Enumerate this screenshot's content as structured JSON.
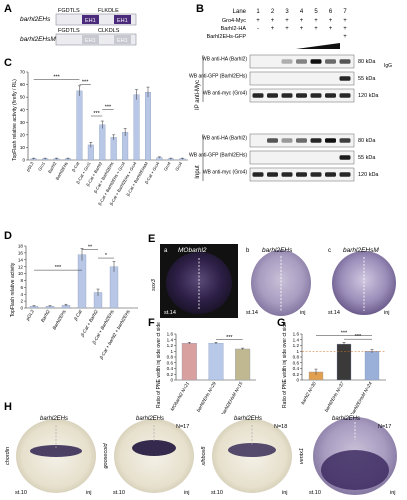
{
  "panels": {
    "A": {
      "letter": "A",
      "constructs": [
        {
          "name": "barhl2EHs",
          "segments": [
            "FGDTLS",
            "FLKDLE",
            "EH1",
            "EH1"
          ]
        },
        {
          "name": "barhl2EHsM",
          "segments": [
            "FGDTLS",
            "CLKDLS",
            "EH1",
            "EH1"
          ]
        }
      ]
    },
    "B": {
      "letter": "B",
      "lane_label": "Lane",
      "lanes": [
        "1",
        "2",
        "3",
        "4",
        "5",
        "6",
        "7"
      ],
      "conditions": [
        {
          "label": "Gro4-Myc",
          "marks": [
            "+",
            "+",
            "+",
            "+",
            "+",
            "+",
            "+"
          ]
        },
        {
          "label": "Barhl2-HA",
          "marks": [
            "-",
            "+",
            "+",
            "+",
            "+",
            "+",
            "+"
          ]
        },
        {
          "label": "Barhl2EHs-GFP",
          "marks": [
            "",
            "",
            "",
            "",
            "",
            "",
            "+"
          ]
        }
      ],
      "ip_label": "IP anti-Myc",
      "input_label": "Input",
      "blots": [
        {
          "label": "WB anti-HA (Barhl2)",
          "kda": "80 kDa",
          "extra": "IgG"
        },
        {
          "label": "WB anti-GFP (Barhl2EHs)",
          "kda": "55 kDa"
        },
        {
          "label": "WB anti-myc (Gro4)",
          "kda": "120 kDa"
        },
        {
          "label": "WB anti-HA (Barhl2)",
          "kda": "80 kDa"
        },
        {
          "label": "WB anti-GFP (Barhl2EHs)",
          "kda": "55 kDa"
        },
        {
          "label": "WB anti-myc (Gro4)",
          "kda": "120 kDa"
        }
      ]
    },
    "C": {
      "letter": "C",
      "ylabel": "TopFlash relative activity (firefly / RL)",
      "sig": [
        "***",
        "***",
        "***",
        "***"
      ]
    },
    "D": {
      "letter": "D",
      "ylabel": "TopFlash relative activity",
      "sig": [
        "***",
        "**",
        "*"
      ]
    },
    "E": {
      "letter": "E",
      "images": [
        {
          "sub": "a",
          "title": "MObarhl2",
          "stage": "st.14",
          "marker": "sox3"
        },
        {
          "sub": "b",
          "title": "barhl2EHs",
          "stage": "st.14",
          "inj": "inj"
        },
        {
          "sub": "c",
          "title": "barhl2EHsM",
          "stage": "st.14",
          "inj": "inj"
        }
      ]
    },
    "F": {
      "letter": "F",
      "ylabel": "Ratio of PNE width inj side over ct side",
      "sig": "***"
    },
    "G": {
      "letter": "G",
      "ylabel": "Ratio of PNE width inj side over ct side",
      "sig": [
        "***",
        "***"
      ]
    },
    "H": {
      "letter": "H",
      "images": [
        {
          "title": "barhl2EHs",
          "marker": "chordin",
          "stage": "st.10",
          "inj": "inj",
          "count": ""
        },
        {
          "title": "barhl2EHs",
          "marker": "goosecoid",
          "stage": "st.10",
          "inj": "inj",
          "count": "N=17"
        },
        {
          "title": "barhl2EHs",
          "marker": "xlhbox8",
          "stage": "st.10",
          "inj": "inj",
          "count": "N=18"
        },
        {
          "title": "barhl2EHs",
          "marker": "ventx1",
          "stage": "st.10",
          "inj": "inj",
          "count": "N=17"
        }
      ]
    }
  },
  "chart_data": [
    {
      "panel": "C",
      "type": "bar",
      "categories": [
        "pGL3",
        "Gro1",
        "Barhl2",
        "Barhl2EHs",
        "β-Cat",
        "β-Cat + Gro1",
        "β-Cat + Barhl2",
        "β-Cat + Barhl2EHs",
        "β-Cat + Barhl2EHs + Gro4",
        "β-Cat + Barhl2EHs + Gro4",
        "β-Cat + Barhl2EHsM",
        "β-Cat + Gro4",
        "Gro4",
        "Gro4"
      ],
      "values": [
        1,
        1,
        1,
        1,
        55,
        12,
        28,
        18,
        22,
        52,
        54,
        2,
        1,
        1
      ],
      "errors": [
        0.5,
        0.5,
        0.5,
        0.5,
        4,
        2,
        3,
        2,
        3,
        4,
        4,
        0.5,
        0.5,
        0.5
      ],
      "ylim": [
        0,
        70
      ],
      "yticks": [
        0,
        10,
        20,
        30,
        40,
        50,
        60,
        70
      ],
      "color": "#b9c7e6"
    },
    {
      "panel": "D",
      "type": "bar",
      "categories": [
        "pGL3",
        "Barhl2",
        "Barhl2EHs",
        "β-Cat",
        "β-Cat + Barhl2",
        "β-Cat + Barhl2EHs",
        "β-Cat + barhl2 + barhl2EHs"
      ],
      "values": [
        0.5,
        0.5,
        0.8,
        15.5,
        4.5,
        12.0,
        0
      ],
      "errors": [
        0.2,
        0.2,
        0.3,
        1.8,
        1.0,
        1.5,
        0
      ],
      "ylim": [
        0,
        18
      ],
      "yticks": [
        0,
        2,
        4,
        6,
        8,
        10,
        12,
        14,
        16,
        18
      ],
      "color": "#b9c7e6"
    },
    {
      "panel": "F",
      "type": "bar",
      "categories": [
        "MObarhl2 N=21",
        "barhl2EHs N=29",
        "barhl2EHsM N=15"
      ],
      "values": [
        1.28,
        1.28,
        1.08
      ],
      "errors": [
        0.03,
        0.03,
        0.03
      ],
      "ylim": [
        0,
        1.6
      ],
      "yticks": [
        0,
        0.2,
        0.4,
        0.6,
        0.8,
        1.0,
        1.2,
        1.4,
        1.6
      ],
      "colors": [
        "#d9a0a0",
        "#b7c8e8",
        "#c0b890"
      ]
    },
    {
      "panel": "G",
      "type": "bar",
      "categories": [
        "barhl2 N=30",
        "barhl2EHs N=37",
        "barhl2EHs + barhl2EHsM N=24"
      ],
      "values": [
        0.28,
        1.25,
        1.0
      ],
      "errors": [
        0.1,
        0.06,
        0.06
      ],
      "ylim": [
        0,
        1.6
      ],
      "yticks": [
        0,
        0.2,
        0.4,
        0.6,
        0.8,
        1.0,
        1.2,
        1.4,
        1.6
      ],
      "colors": [
        "#e0a050",
        "#3a3a3a",
        "#9ab0d8"
      ],
      "reference_line": 1.0
    }
  ]
}
